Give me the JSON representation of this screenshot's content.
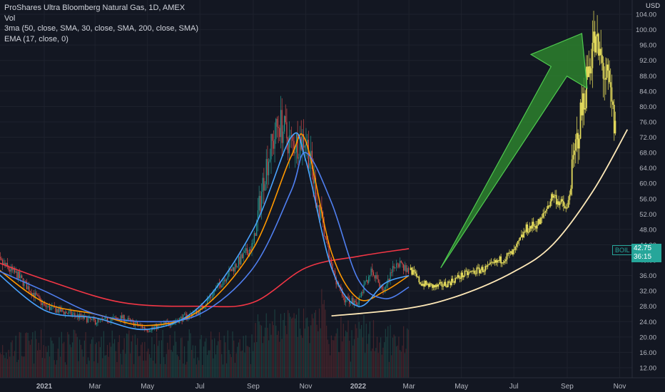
{
  "chart_data": {
    "type": "candlestick",
    "title": "ProShares Ultra Bloomberg Natural Gas, 1D, AMEX",
    "indicators": [
      "Vol",
      "3ma (50, close, SMA, 30, close, SMA, 200, close, SMA)",
      "EMA (17, close, 0)"
    ],
    "currency": "USD",
    "ticker": "BOIL",
    "last_price": "42.75",
    "countdown": "36:15",
    "ylim": [
      9,
      108
    ],
    "y_ticks": [
      "104.00",
      "100.00",
      "96.00",
      "92.00",
      "88.00",
      "84.00",
      "80.00",
      "76.00",
      "72.00",
      "68.00",
      "64.00",
      "60.00",
      "56.00",
      "52.00",
      "48.00",
      "44.00",
      "40.00",
      "36.00",
      "32.00",
      "28.00",
      "24.00",
      "20.00",
      "16.00",
      "12.00"
    ],
    "x_ticks": [
      "2021",
      "Mar",
      "May",
      "Jul",
      "Sep",
      "Nov",
      "2022",
      "Mar",
      "May",
      "Jul",
      "Sep",
      "Nov"
    ],
    "price_path": {
      "x": [
        "2020-11-01",
        "2020-12-01",
        "2021-01-01",
        "2021-02-01",
        "2021-03-01",
        "2021-04-01",
        "2021-05-01",
        "2021-06-01",
        "2021-07-01",
        "2021-08-01",
        "2021-09-01",
        "2021-09-15",
        "2021-10-01",
        "2021-10-15",
        "2021-11-01",
        "2021-11-15",
        "2021-12-01",
        "2021-12-15",
        "2022-01-01",
        "2022-01-15",
        "2022-02-01",
        "2022-02-15",
        "2022-03-01"
      ],
      "y": [
        41,
        36,
        28,
        26,
        24,
        25,
        22,
        24,
        27,
        36,
        44,
        64,
        76,
        70,
        72,
        55,
        38,
        30,
        29,
        37,
        32,
        40,
        37
      ]
    },
    "projection_path": {
      "x": [
        "2022-03-01",
        "2022-03-15",
        "2022-04-01",
        "2022-04-15",
        "2022-05-01",
        "2022-05-15",
        "2022-06-01",
        "2022-06-15",
        "2022-07-01",
        "2022-07-15",
        "2022-08-01",
        "2022-08-15",
        "2022-09-01",
        "2022-09-10",
        "2022-09-20",
        "2022-10-01",
        "2022-10-10",
        "2022-10-20",
        "2022-10-27"
      ],
      "y": [
        38,
        34,
        33,
        34,
        36,
        37,
        38,
        40,
        42,
        48,
        50,
        57,
        53,
        68,
        82,
        97,
        92,
        84,
        73
      ]
    },
    "series": [
      {
        "name": "3ma (50, close, SMA, 30, close, SMA, 200, close, SMA)",
        "color": "#f23645",
        "x": [
          "2020-11-01",
          "2021-01-01",
          "2021-04-01",
          "2021-07-01",
          "2021-09-01",
          "2021-11-01",
          "2022-01-01",
          "2022-03-01"
        ],
        "y": [
          40,
          35,
          29,
          28,
          29,
          38,
          41,
          43
        ]
      },
      {
        "name": "3ma (50, close, SMA, 30, close, SMA, 200, close, SMA)",
        "color": "#ff9800",
        "x": [
          "2020-11-01",
          "2021-01-01",
          "2021-03-01",
          "2021-05-01",
          "2021-07-01",
          "2021-09-01",
          "2021-10-15",
          "2021-11-01",
          "2021-12-01",
          "2022-01-01",
          "2022-02-01",
          "2022-03-01"
        ],
        "y": [
          39,
          29,
          26,
          23,
          27,
          43,
          67,
          71,
          42,
          30,
          32,
          36
        ]
      },
      {
        "name": "3ma (50, close, SMA, 30, close, SMA, 200, close, SMA)",
        "color": "#4f7ff0",
        "x": [
          "2020-11-01",
          "2021-01-01",
          "2021-03-01",
          "2021-05-01",
          "2021-07-01",
          "2021-09-01",
          "2021-10-15",
          "2021-11-01",
          "2021-12-01",
          "2022-01-01",
          "2022-02-01",
          "2022-03-01"
        ],
        "y": [
          38,
          32,
          26,
          24,
          26,
          38,
          58,
          68,
          55,
          35,
          30,
          33
        ]
      },
      {
        "name": "EMA (17, close, 0)",
        "color": "#4aa3ff",
        "x": [
          "2020-11-01",
          "2021-01-01",
          "2021-03-01",
          "2021-05-01",
          "2021-07-01",
          "2021-09-01",
          "2021-10-15",
          "2021-11-01",
          "2021-12-01",
          "2022-01-01",
          "2022-02-01",
          "2022-03-01"
        ],
        "y": [
          38,
          27,
          25,
          22,
          28,
          48,
          72,
          66,
          38,
          28,
          34,
          36
        ]
      }
    ],
    "trendline": {
      "color": "#ffe9b8",
      "x": [
        "2021-12-01",
        "2022-03-01",
        "2022-05-01",
        "2022-07-01",
        "2022-08-15",
        "2022-10-01",
        "2022-11-10"
      ],
      "y": [
        25.5,
        27.5,
        31,
        37,
        44,
        58,
        74
      ]
    },
    "arrow_color": "#2e8b2e",
    "grid": true
  }
}
